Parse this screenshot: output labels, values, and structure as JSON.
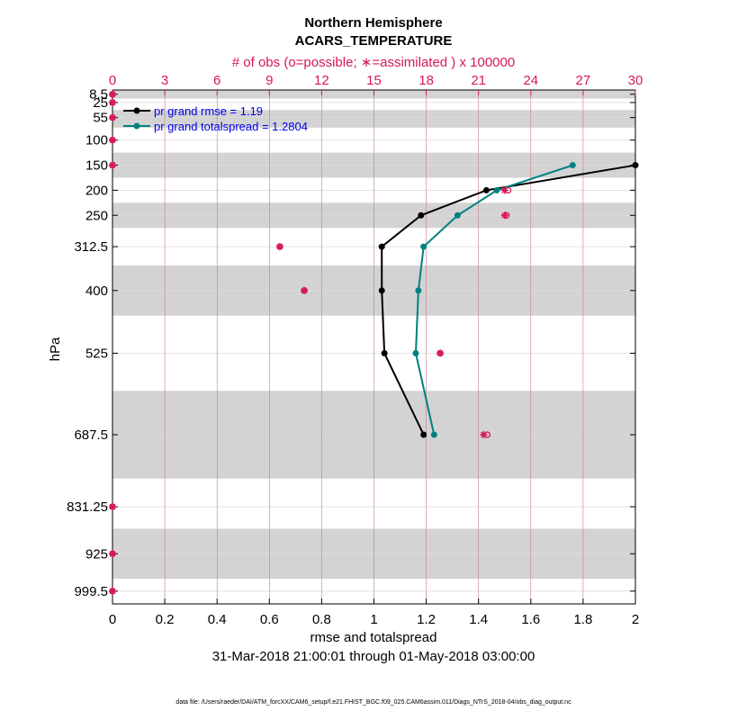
{
  "chart_data": {
    "type": "line",
    "title": "Northern Hemisphere",
    "subtitle": "ACARS_TEMPERATURE",
    "top_axis_label": "# of obs (o=possible; ∗=assimilated ) x 100000",
    "top_axis_ticks": [
      "0",
      "3",
      "6",
      "9",
      "12",
      "15",
      "18",
      "21",
      "24",
      "27",
      "30"
    ],
    "top_axis_range": [
      0,
      30
    ],
    "xlabel": "rmse and totalspread",
    "xlim": [
      0,
      2
    ],
    "x_ticks": [
      "0",
      "0.2",
      "0.4",
      "0.6",
      "0.8",
      "1",
      "1.2",
      "1.4",
      "1.6",
      "1.8",
      "2"
    ],
    "ylabel": "hPa",
    "ylim": [
      1025,
      0
    ],
    "y_levels": [
      8.5,
      25,
      55,
      100,
      150,
      200,
      250,
      312.5,
      400,
      525,
      687.5,
      831.25,
      925,
      999.5
    ],
    "y_tick_labels": [
      "8.5",
      "25",
      "55",
      "100",
      "150",
      "200",
      "250",
      "312.5",
      "400",
      "525",
      "687.5",
      "831.25",
      "925",
      "999.5"
    ],
    "shaded_bands": [
      [
        0,
        17
      ],
      [
        40,
        75
      ],
      [
        125,
        175
      ],
      [
        225,
        275
      ],
      [
        350,
        450
      ],
      [
        600,
        775
      ],
      [
        875,
        975
      ]
    ],
    "series": [
      {
        "name": "rmse",
        "legend": "pr grand rmse = 1.19",
        "color": "#000000",
        "levels": [
          150,
          200,
          250,
          312.5,
          400,
          525,
          687.5
        ],
        "values": [
          2.0,
          1.43,
          1.18,
          1.03,
          1.03,
          1.04,
          1.19
        ]
      },
      {
        "name": "totalspread",
        "legend": "pr grand totalspread = 1.2804",
        "color": "#008080",
        "levels": [
          150,
          200,
          250,
          312.5,
          400,
          525,
          687.5
        ],
        "values": [
          1.76,
          1.47,
          1.32,
          1.19,
          1.17,
          1.16,
          1.23
        ]
      }
    ],
    "obs_possible": {
      "levels": [
        8.5,
        25,
        55,
        100,
        150,
        200,
        250,
        312.5,
        400,
        525,
        687.5,
        831.25,
        925,
        999.5
      ],
      "values": [
        0,
        0,
        0,
        0,
        0,
        22.7,
        22.6,
        9.6,
        11.0,
        18.8,
        21.5,
        0,
        0,
        0
      ]
    },
    "obs_assimilated": {
      "levels": [
        8.5,
        25,
        55,
        100,
        150,
        200,
        250,
        312.5,
        400,
        525,
        687.5,
        831.25,
        925,
        999.5
      ],
      "values": [
        0,
        0,
        0,
        0,
        0,
        22.5,
        22.5,
        9.6,
        11.0,
        18.8,
        21.3,
        0,
        0,
        0
      ]
    },
    "colors": {
      "obs": "#d6175b",
      "band": "#d3d3d3",
      "grid": "#dcdcdc",
      "top_grid": "#c87a8e"
    },
    "date_range": "31-Mar-2018 21:00:01 through 01-May-2018 03:00:00",
    "footnote": "data file: /Users/raeder/DAI/ATM_forcXX/CAM6_setup/f.e21.FHIST_BGC.f09_025.CAM6assim.011/Diags_NTrS_2018-04/obs_diag_output.nc"
  }
}
